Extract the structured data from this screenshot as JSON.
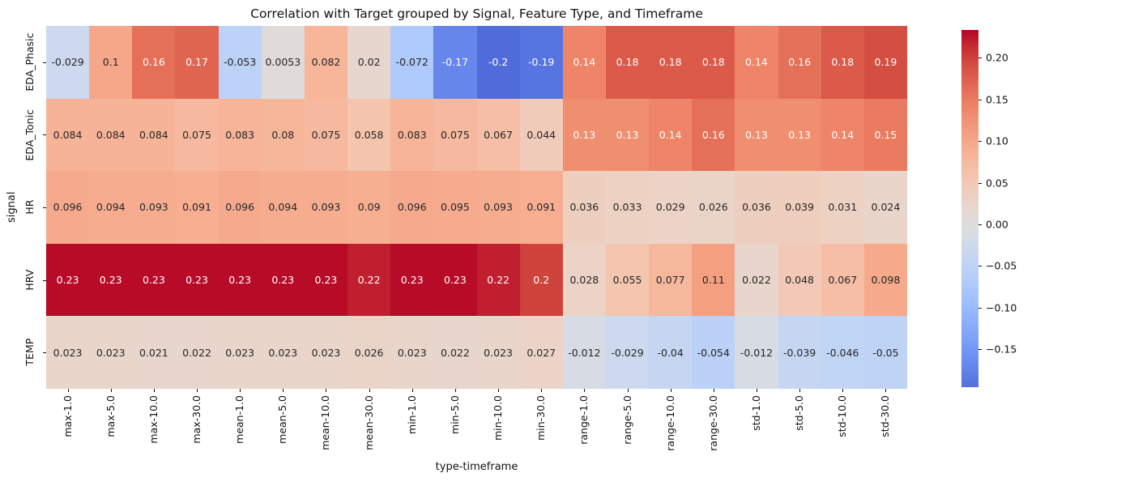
{
  "chart_data": {
    "type": "heatmap",
    "title": "Correlation with Target grouped by Signal, Feature Type, and Timeframe",
    "xlabel": "type-timeframe",
    "ylabel": "signal",
    "columns": [
      "max-1.0",
      "max-5.0",
      "max-10.0",
      "max-30.0",
      "mean-1.0",
      "mean-5.0",
      "mean-10.0",
      "mean-30.0",
      "min-1.0",
      "min-5.0",
      "min-10.0",
      "min-30.0",
      "range-1.0",
      "range-5.0",
      "range-10.0",
      "range-30.0",
      "std-1.0",
      "std-5.0",
      "std-10.0",
      "std-30.0"
    ],
    "rows": [
      "EDA_Phasic",
      "EDA_Tonic",
      "HR",
      "HRV",
      "TEMP"
    ],
    "values": [
      [
        "-0.029",
        "0.1",
        "0.16",
        "0.17",
        "-0.053",
        "0.0053",
        "0.082",
        "0.02",
        "-0.072",
        "-0.17",
        "-0.2",
        "-0.19",
        "0.14",
        "0.18",
        "0.18",
        "0.18",
        "0.14",
        "0.16",
        "0.18",
        "0.19"
      ],
      [
        "0.084",
        "0.084",
        "0.084",
        "0.075",
        "0.083",
        "0.08",
        "0.075",
        "0.058",
        "0.083",
        "0.075",
        "0.067",
        "0.044",
        "0.13",
        "0.13",
        "0.14",
        "0.16",
        "0.13",
        "0.13",
        "0.14",
        "0.15"
      ],
      [
        "0.096",
        "0.094",
        "0.093",
        "0.091",
        "0.096",
        "0.094",
        "0.093",
        "0.09",
        "0.096",
        "0.095",
        "0.093",
        "0.091",
        "0.036",
        "0.033",
        "0.029",
        "0.026",
        "0.036",
        "0.039",
        "0.031",
        "0.024"
      ],
      [
        "0.23",
        "0.23",
        "0.23",
        "0.23",
        "0.23",
        "0.23",
        "0.23",
        "0.22",
        "0.23",
        "0.23",
        "0.22",
        "0.2",
        "0.028",
        "0.055",
        "0.077",
        "0.11",
        "0.022",
        "0.048",
        "0.067",
        "0.098"
      ],
      [
        "0.023",
        "0.023",
        "0.021",
        "0.022",
        "0.023",
        "0.023",
        "0.023",
        "0.026",
        "0.023",
        "0.022",
        "0.023",
        "0.027",
        "-0.012",
        "-0.029",
        "-0.04",
        "-0.054",
        "-0.012",
        "-0.039",
        "-0.046",
        "-0.05"
      ]
    ],
    "vmin": -0.1955,
    "vmax": 0.2335,
    "center": 0,
    "colorbar_ticks": [
      "0.20",
      "0.15",
      "0.10",
      "0.05",
      "0.00",
      "−0.05",
      "−0.10",
      "−0.15"
    ],
    "colormap": "coolwarm",
    "colormap_stops": [
      [
        0.0,
        59,
        76,
        192
      ],
      [
        0.0625,
        77,
        104,
        215
      ],
      [
        0.125,
        98,
        130,
        234
      ],
      [
        0.1875,
        119,
        154,
        247
      ],
      [
        0.25,
        141,
        176,
        254
      ],
      [
        0.3125,
        163,
        194,
        255
      ],
      [
        0.375,
        184,
        208,
        249
      ],
      [
        0.4375,
        204,
        217,
        238
      ],
      [
        0.5,
        221,
        221,
        221
      ],
      [
        0.5625,
        236,
        211,
        197
      ],
      [
        0.625,
        245,
        196,
        173
      ],
      [
        0.6875,
        247,
        177,
        148
      ],
      [
        0.75,
        244,
        154,
        123
      ],
      [
        0.8125,
        236,
        127,
        99
      ],
      [
        0.875,
        222,
        96,
        77
      ],
      [
        0.9375,
        203,
        62,
        56
      ],
      [
        1.0,
        180,
        4,
        38
      ]
    ],
    "colors": {
      "annotation_dark": "#262626",
      "annotation_light": "#ffffff",
      "background": "#ffffff",
      "axis_text": "#111111"
    }
  }
}
